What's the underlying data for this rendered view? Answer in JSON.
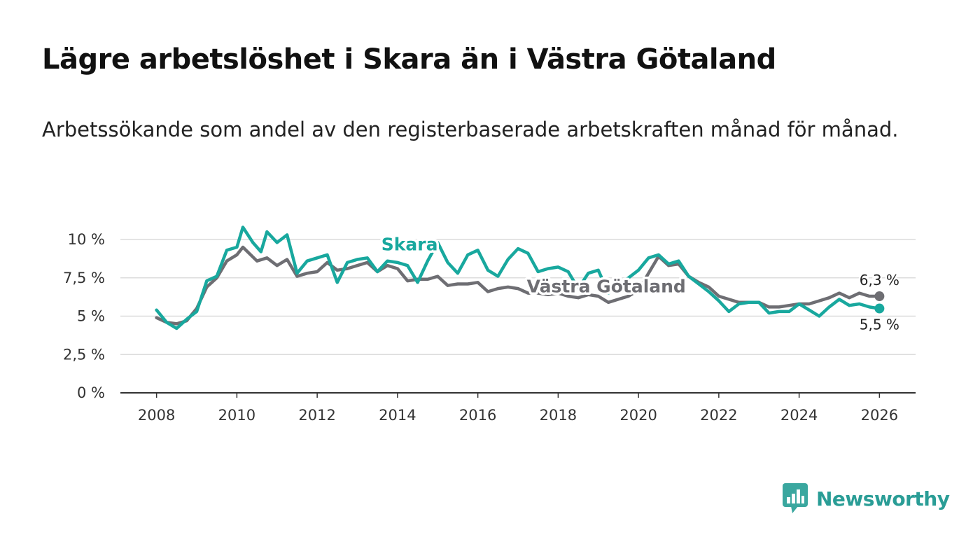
{
  "title": "Lägre arbetslöshet i Skara än i Västra Götaland",
  "subtitle": "Arbetssökande som andel av den registerbaserade arbetskraften månad för månad.",
  "brand": {
    "name": "Newsworthy",
    "color": "#2a9d96"
  },
  "chart_data": {
    "type": "line",
    "title": "Lägre arbetslöshet i Skara än i Västra Götaland",
    "xlabel": "",
    "ylabel": "",
    "xlim": [
      2007.1,
      2026.9
    ],
    "ylim": [
      0,
      10
    ],
    "grid": true,
    "y_ticks": [
      0,
      2.5,
      5,
      7.5,
      10
    ],
    "y_tick_labels": [
      "0 %",
      "2,5 %",
      "5 %",
      "7,5 %",
      "10 %"
    ],
    "x_ticks": [
      2008,
      2010,
      2012,
      2014,
      2016,
      2018,
      2020,
      2022,
      2024,
      2026
    ],
    "x_tick_labels": [
      "2008",
      "2010",
      "2012",
      "2014",
      "2016",
      "2018",
      "2020",
      "2022",
      "2024",
      "2026"
    ],
    "series": [
      {
        "name": "Västra Götaland",
        "color": "#6e6e73",
        "end_label": "6,3 %",
        "points": [
          [
            2008.0,
            4.9
          ],
          [
            2008.25,
            4.6
          ],
          [
            2008.5,
            4.5
          ],
          [
            2008.75,
            4.7
          ],
          [
            2009.0,
            5.5
          ],
          [
            2009.25,
            6.9
          ],
          [
            2009.5,
            7.5
          ],
          [
            2009.75,
            8.6
          ],
          [
            2010.0,
            9.0
          ],
          [
            2010.15,
            9.5
          ],
          [
            2010.5,
            8.6
          ],
          [
            2010.75,
            8.8
          ],
          [
            2011.0,
            8.3
          ],
          [
            2011.25,
            8.7
          ],
          [
            2011.5,
            7.6
          ],
          [
            2011.75,
            7.8
          ],
          [
            2012.0,
            7.9
          ],
          [
            2012.25,
            8.5
          ],
          [
            2012.5,
            8.0
          ],
          [
            2012.75,
            8.1
          ],
          [
            2013.0,
            8.3
          ],
          [
            2013.25,
            8.5
          ],
          [
            2013.5,
            7.9
          ],
          [
            2013.75,
            8.3
          ],
          [
            2014.0,
            8.1
          ],
          [
            2014.25,
            7.3
          ],
          [
            2014.5,
            7.4
          ],
          [
            2014.75,
            7.4
          ],
          [
            2015.0,
            7.6
          ],
          [
            2015.25,
            7.0
          ],
          [
            2015.5,
            7.1
          ],
          [
            2015.75,
            7.1
          ],
          [
            2016.0,
            7.2
          ],
          [
            2016.25,
            6.6
          ],
          [
            2016.5,
            6.8
          ],
          [
            2016.75,
            6.9
          ],
          [
            2017.0,
            6.8
          ],
          [
            2017.25,
            6.5
          ],
          [
            2017.5,
            6.5
          ],
          [
            2017.75,
            6.4
          ],
          [
            2018.0,
            6.5
          ],
          [
            2018.25,
            6.3
          ],
          [
            2018.5,
            6.2
          ],
          [
            2018.75,
            6.4
          ],
          [
            2019.0,
            6.3
          ],
          [
            2019.25,
            5.9
          ],
          [
            2019.5,
            6.1
          ],
          [
            2019.75,
            6.3
          ],
          [
            2020.0,
            6.7
          ],
          [
            2020.25,
            7.8
          ],
          [
            2020.5,
            8.9
          ],
          [
            2020.75,
            8.3
          ],
          [
            2021.0,
            8.4
          ],
          [
            2021.25,
            7.6
          ],
          [
            2021.5,
            7.2
          ],
          [
            2021.75,
            6.9
          ],
          [
            2022.0,
            6.3
          ],
          [
            2022.25,
            6.1
          ],
          [
            2022.5,
            5.9
          ],
          [
            2022.75,
            5.9
          ],
          [
            2023.0,
            5.9
          ],
          [
            2023.25,
            5.6
          ],
          [
            2023.5,
            5.6
          ],
          [
            2023.75,
            5.7
          ],
          [
            2024.0,
            5.8
          ],
          [
            2024.25,
            5.8
          ],
          [
            2024.5,
            6.0
          ],
          [
            2024.75,
            6.2
          ],
          [
            2025.0,
            6.5
          ],
          [
            2025.25,
            6.2
          ],
          [
            2025.5,
            6.5
          ],
          [
            2025.75,
            6.3
          ],
          [
            2026.0,
            6.3
          ]
        ]
      },
      {
        "name": "Skara",
        "color": "#18a89e",
        "end_label": "5,5 %",
        "points": [
          [
            2008.0,
            5.4
          ],
          [
            2008.25,
            4.6
          ],
          [
            2008.5,
            4.2
          ],
          [
            2008.75,
            4.8
          ],
          [
            2009.0,
            5.3
          ],
          [
            2009.25,
            7.3
          ],
          [
            2009.5,
            7.6
          ],
          [
            2009.75,
            9.3
          ],
          [
            2010.0,
            9.5
          ],
          [
            2010.15,
            10.8
          ],
          [
            2010.4,
            9.8
          ],
          [
            2010.6,
            9.2
          ],
          [
            2010.75,
            10.5
          ],
          [
            2011.0,
            9.8
          ],
          [
            2011.25,
            10.3
          ],
          [
            2011.5,
            7.8
          ],
          [
            2011.75,
            8.6
          ],
          [
            2012.0,
            8.8
          ],
          [
            2012.25,
            9.0
          ],
          [
            2012.5,
            7.2
          ],
          [
            2012.75,
            8.5
          ],
          [
            2013.0,
            8.7
          ],
          [
            2013.25,
            8.8
          ],
          [
            2013.5,
            7.9
          ],
          [
            2013.75,
            8.6
          ],
          [
            2014.0,
            8.5
          ],
          [
            2014.25,
            8.3
          ],
          [
            2014.5,
            7.2
          ],
          [
            2014.75,
            8.6
          ],
          [
            2015.0,
            9.8
          ],
          [
            2015.25,
            8.5
          ],
          [
            2015.5,
            7.8
          ],
          [
            2015.75,
            9.0
          ],
          [
            2016.0,
            9.3
          ],
          [
            2016.25,
            8.0
          ],
          [
            2016.5,
            7.6
          ],
          [
            2016.75,
            8.7
          ],
          [
            2017.0,
            9.4
          ],
          [
            2017.25,
            9.1
          ],
          [
            2017.5,
            7.9
          ],
          [
            2017.75,
            8.1
          ],
          [
            2018.0,
            8.2
          ],
          [
            2018.25,
            7.9
          ],
          [
            2018.5,
            6.8
          ],
          [
            2018.75,
            7.8
          ],
          [
            2019.0,
            8.0
          ],
          [
            2019.25,
            6.5
          ],
          [
            2019.5,
            7.0
          ],
          [
            2019.75,
            7.5
          ],
          [
            2020.0,
            8.0
          ],
          [
            2020.25,
            8.8
          ],
          [
            2020.5,
            9.0
          ],
          [
            2020.75,
            8.4
          ],
          [
            2021.0,
            8.6
          ],
          [
            2021.25,
            7.6
          ],
          [
            2021.5,
            7.1
          ],
          [
            2021.75,
            6.6
          ],
          [
            2022.0,
            6.0
          ],
          [
            2022.25,
            5.3
          ],
          [
            2022.5,
            5.8
          ],
          [
            2022.75,
            5.9
          ],
          [
            2023.0,
            5.9
          ],
          [
            2023.25,
            5.2
          ],
          [
            2023.5,
            5.3
          ],
          [
            2023.75,
            5.3
          ],
          [
            2024.0,
            5.8
          ],
          [
            2024.25,
            5.4
          ],
          [
            2024.5,
            5.0
          ],
          [
            2024.75,
            5.6
          ],
          [
            2025.0,
            6.1
          ],
          [
            2025.25,
            5.7
          ],
          [
            2025.5,
            5.8
          ],
          [
            2025.75,
            5.6
          ],
          [
            2026.0,
            5.5
          ]
        ]
      }
    ]
  }
}
